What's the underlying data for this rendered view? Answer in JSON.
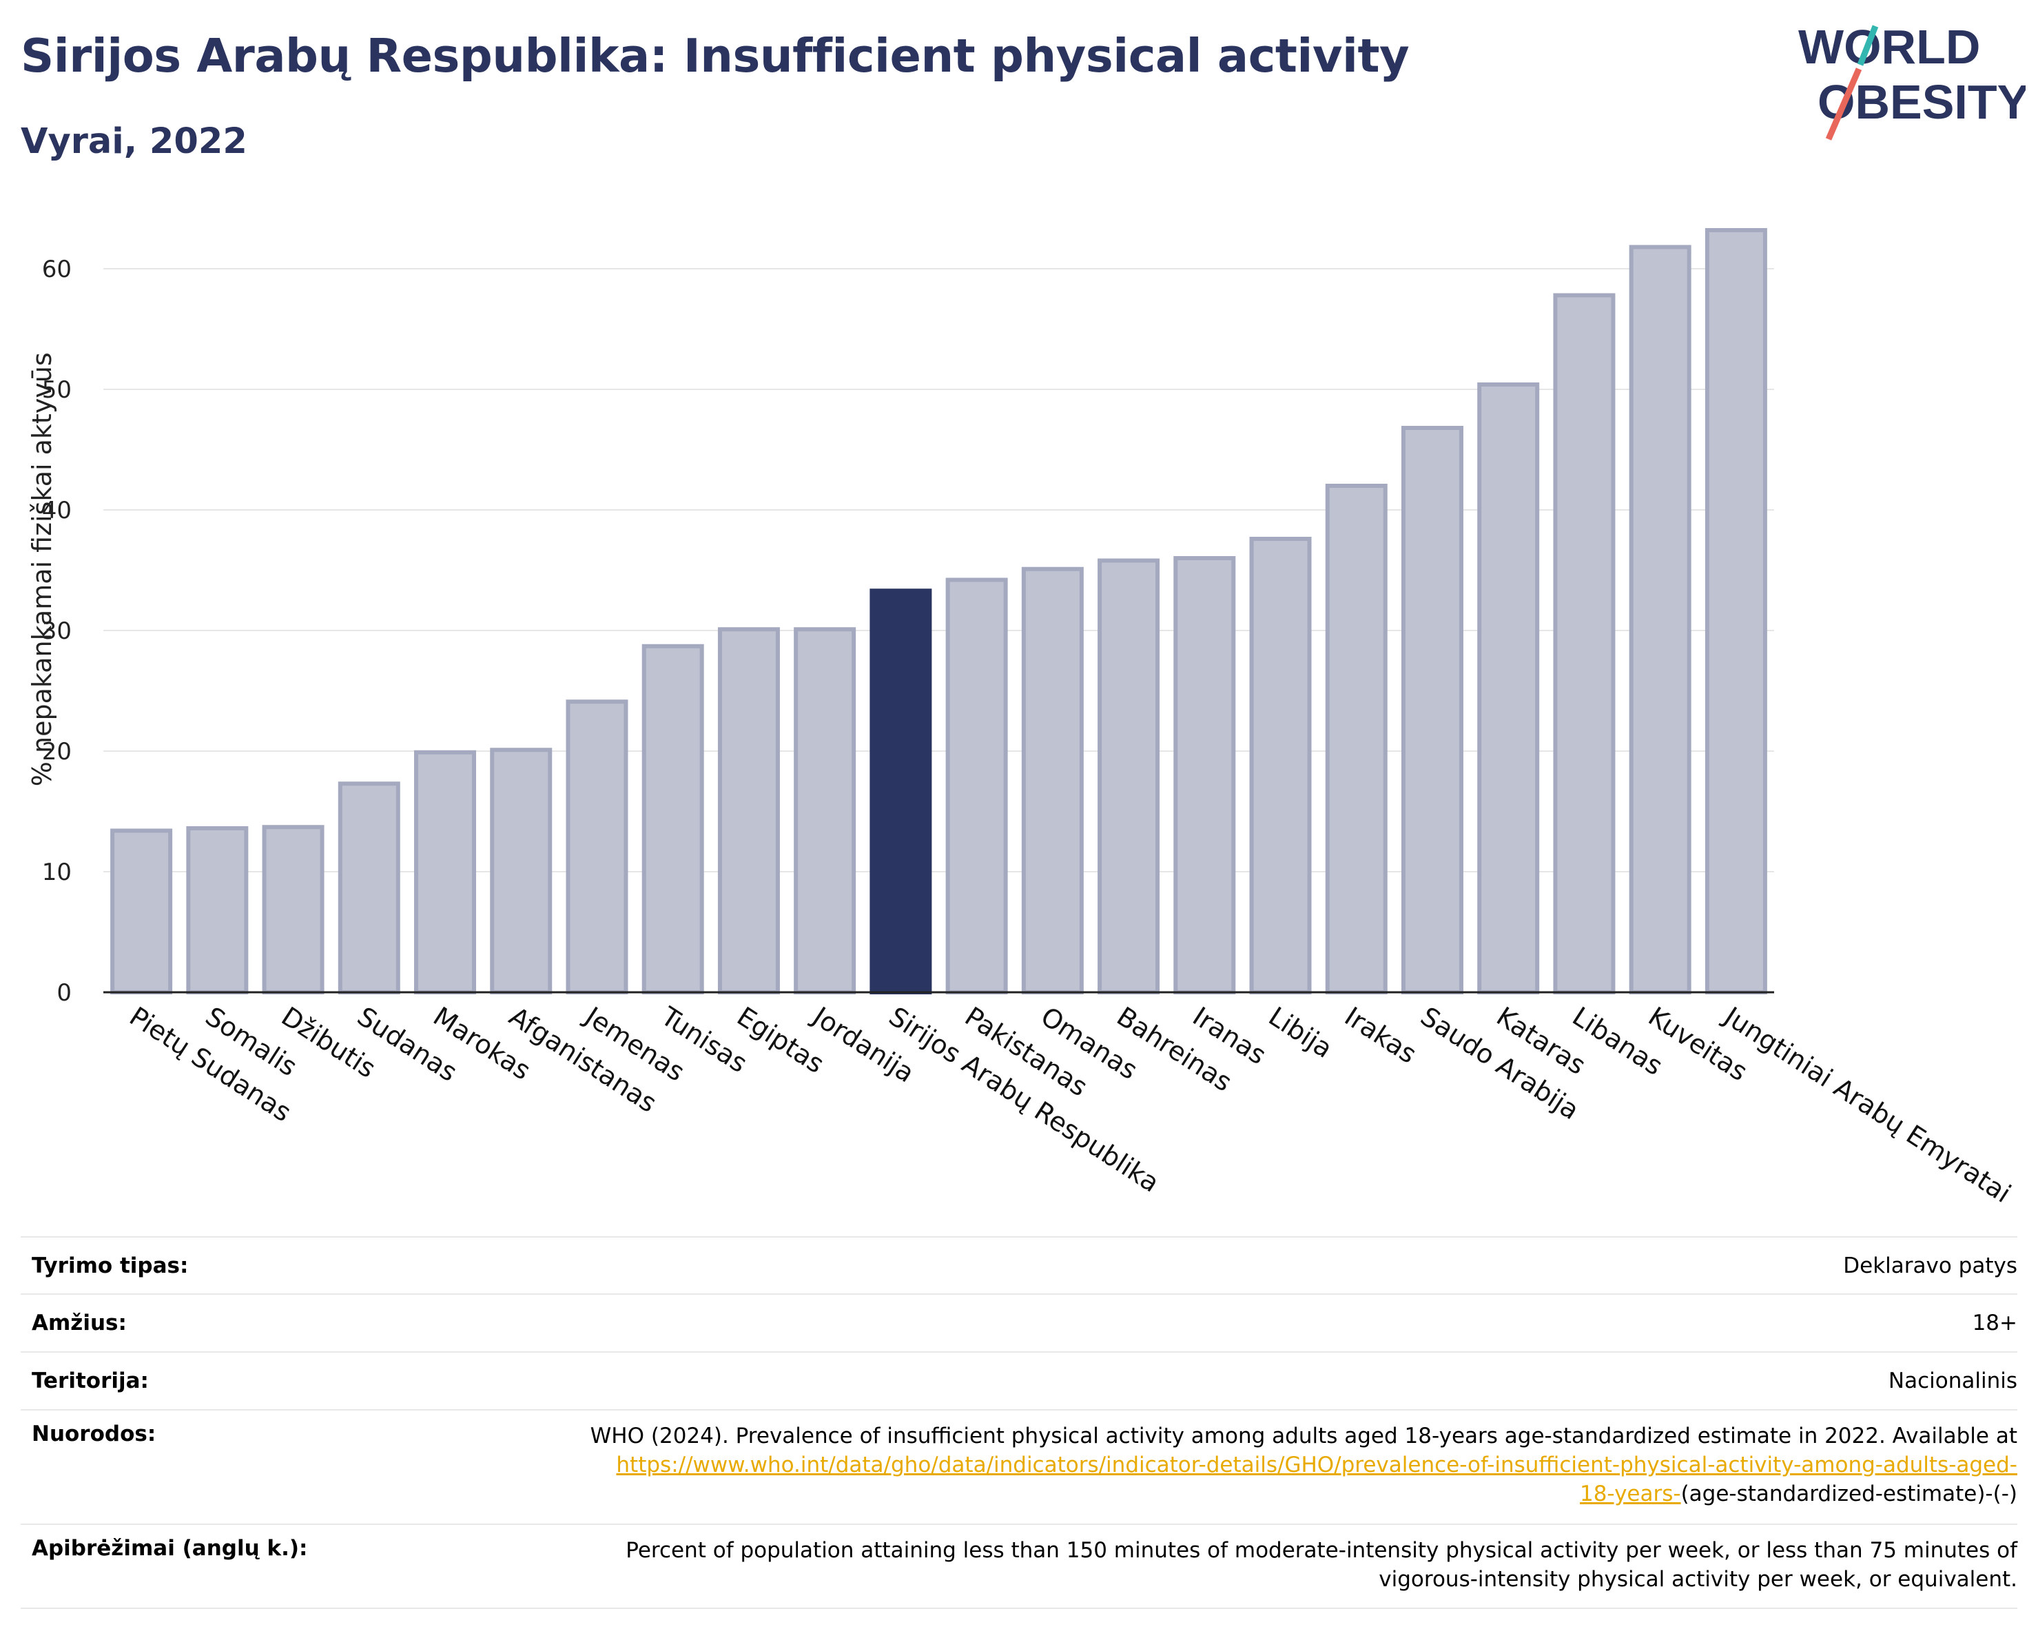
{
  "header": {
    "title": "Sirijos Arabų Respublika: Insufficient physical activity",
    "subtitle": "Vyrai, 2022"
  },
  "logo": {
    "line1": "WORLD",
    "line2": "OBESITY"
  },
  "colors": {
    "highlight": "#2a3561",
    "bar": "#bfc2d1",
    "bar_edge": "#a4a9bf",
    "title": "#2b345e",
    "link": "#e8a900"
  },
  "chart_data": {
    "type": "bar",
    "categories": [
      "Pietų Sudanas",
      "Somalis",
      "Džibutis",
      "Sudanas",
      "Marokas",
      "Afganistanas",
      "Jemenas",
      "Tunisas",
      "Egiptas",
      "Jordanija",
      "Sirijos Arabų Respublika",
      "Pakistanas",
      "Omanas",
      "Bahreinas",
      "Iranas",
      "Libija",
      "Irakas",
      "Saudo Arabija",
      "Kataras",
      "Libanas",
      "Kuveitas",
      "Jungtiniai Arabų Emyratai"
    ],
    "values": [
      13.4,
      13.6,
      13.7,
      17.3,
      19.9,
      20.1,
      24.1,
      28.7,
      30.1,
      30.1,
      33.3,
      34.2,
      35.1,
      35.8,
      36.0,
      37.6,
      42.0,
      46.8,
      50.4,
      57.8,
      61.8,
      63.2
    ],
    "highlight": "Sirijos Arabų Respublika",
    "ylabel": "% nepakankamai fiziškai aktyvūs",
    "xlabel": "",
    "ylim": [
      0,
      65
    ],
    "yticks": [
      0,
      10,
      20,
      30,
      40,
      50,
      60
    ],
    "grid": true
  },
  "info": {
    "rows": [
      {
        "label": "Tyrimo tipas:",
        "value": "Deklaravo patys"
      },
      {
        "label": "Amžius:",
        "value": "18+"
      },
      {
        "label": "Teritorija:",
        "value": "Nacionalinis"
      }
    ],
    "references": {
      "label": "Nuorodos:",
      "text": "WHO (2024). Prevalence of insufficient physical activity among adults aged 18-years age-standardized estimate in 2022. Available at",
      "link1": "https://www.who.int/data/gho/data/indicators/indicator-details/GHO/prevalence-of-insufficient-physical-activity-among-adults-aged-",
      "link2": "18-years-",
      "suffix": "(age-standardized-estimate)-(-)"
    },
    "definitions": {
      "label": "Apibrėžimai (anglų k.):",
      "line1": "Percent of population attaining less than 150 minutes of moderate-intensity physical activity per week, or less than 75 minutes of",
      "line2": "vigorous-intensity physical activity per week, or equivalent."
    }
  }
}
